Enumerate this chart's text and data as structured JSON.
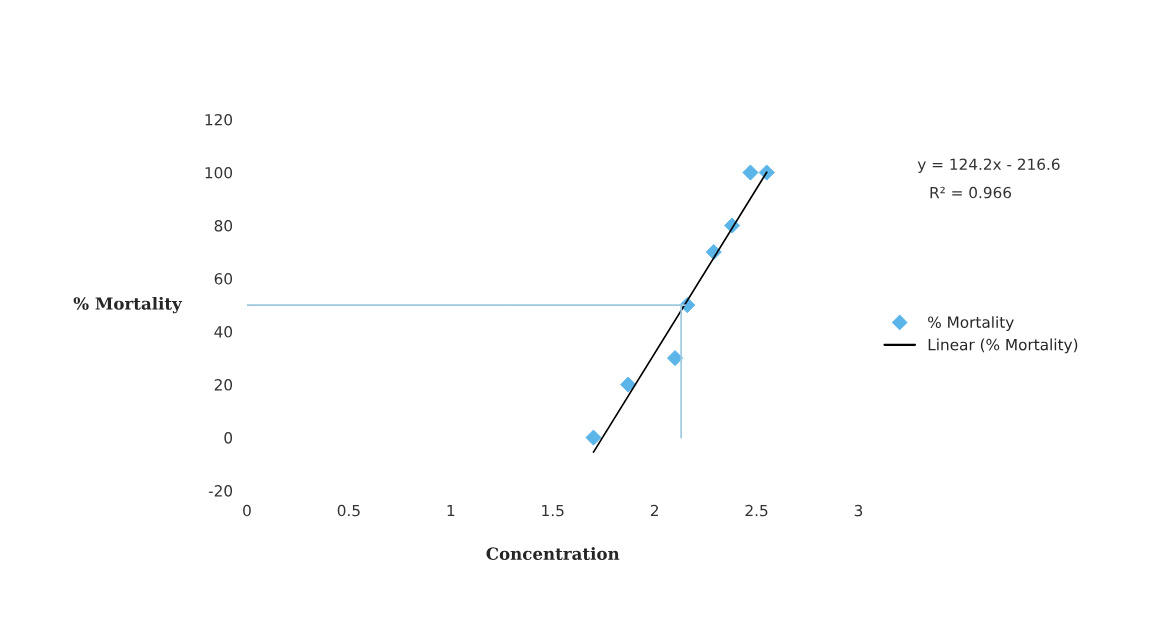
{
  "chart_data": {
    "type": "scatter",
    "xlabel": "Concentration",
    "ylabel": "% Mortality",
    "xlim": [
      0,
      3
    ],
    "ylim": [
      -20,
      120
    ],
    "xticks": [
      0,
      0.5,
      1,
      1.5,
      2,
      2.5,
      3
    ],
    "yticks": [
      -20,
      0,
      20,
      40,
      60,
      80,
      100,
      120
    ],
    "grid": false,
    "legend": "right",
    "annotations": [
      "y = 124.2x - 216.6",
      "R² = 0.966"
    ],
    "series": [
      {
        "name": "% Mortality",
        "marker": "diamond",
        "color": "#5bb5e8",
        "x": [
          1.7,
          1.87,
          2.1,
          2.16,
          2.29,
          2.38,
          2.47,
          2.55
        ],
        "values": [
          0,
          20,
          30,
          50,
          70,
          80,
          100,
          100
        ]
      },
      {
        "name": "Linear (% Mortality)",
        "type": "line",
        "line_style": "solid",
        "color": "#000000",
        "x": [
          1.7,
          2.55
        ],
        "values": [
          -5.5,
          100.1
        ]
      },
      {
        "type": "line",
        "line_style": "solid",
        "color": "#9dc8e0",
        "x": [
          0,
          2.15
        ],
        "values": [
          50,
          50
        ]
      },
      {
        "type": "line",
        "line_style": "solid",
        "color": "#9dc8e0",
        "x": [
          2.13,
          2.13
        ],
        "values": [
          0,
          50
        ]
      }
    ]
  }
}
